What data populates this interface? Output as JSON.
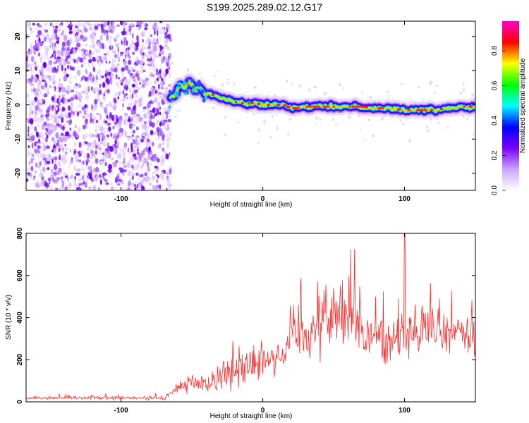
{
  "figure": {
    "title": "S199.2025.289.02.12.G17"
  },
  "chart_data": [
    {
      "type": "heatmap",
      "name": "spectrogram",
      "xlabel": "Height of straight line (km)",
      "ylabel": "Frequency (Hz)",
      "xlim": [
        -167,
        150
      ],
      "ylim": [
        -25,
        24.5
      ],
      "xticks": [
        -100,
        0,
        100
      ],
      "yticks": [
        -20,
        -10,
        0,
        10,
        20
      ],
      "noise_region_x": [
        -167,
        -65
      ],
      "ridge": {
        "x": [
          -65,
          -62,
          -58,
          -55,
          -52,
          -50,
          -48,
          -45,
          -42,
          -40,
          -35,
          -30,
          -25,
          -20,
          -15,
          -10,
          -5,
          0,
          5,
          10,
          15,
          20,
          25,
          30,
          40,
          50,
          60,
          70,
          80,
          90,
          100,
          110,
          120,
          130,
          140,
          150
        ],
        "frequency_hz": [
          2,
          3,
          6,
          5,
          7,
          6,
          4,
          5,
          4,
          3,
          3,
          2,
          1.5,
          1,
          0.5,
          0.5,
          0.5,
          0,
          0,
          0,
          0,
          -1,
          -1,
          -0.5,
          -0.5,
          -0.5,
          -0.5,
          -0.5,
          -1,
          -1,
          -1.5,
          -1.5,
          -1.5,
          -1,
          -0.5,
          -0.5
        ]
      },
      "colorbar": {
        "label": "Normalized spectral amplitude",
        "range": [
          0,
          0.97
        ],
        "ticks": [
          0.0,
          0.2,
          0.4,
          0.6,
          0.8
        ],
        "tick_labels": [
          "0.0",
          "0.2",
          "0.4",
          "0.6",
          "0.8"
        ],
        "colors": [
          "#ffffff",
          "#c9a4ff",
          "#7a00ff",
          "#0000ff",
          "#00ffff",
          "#00ff00",
          "#ffff00",
          "#ff0000",
          "#ff00c8"
        ]
      }
    },
    {
      "type": "line",
      "name": "snr",
      "xlabel": "Height of straight line (km)",
      "ylabel": "SNR (10 * v/v)",
      "xlim": [
        -167,
        150
      ],
      "ylim": [
        0,
        800
      ],
      "xticks": [
        -100,
        0,
        100
      ],
      "yticks": [
        0,
        200,
        400,
        600,
        800
      ],
      "color": "#ff2a2a",
      "envelope": {
        "x": [
          -167,
          -120,
          -70,
          -65,
          -60,
          -50,
          -40,
          -30,
          -25,
          -20,
          -10,
          0,
          10,
          15,
          20,
          30,
          40,
          45,
          50,
          55,
          60,
          65,
          70,
          80,
          90,
          100,
          110,
          120,
          130,
          140,
          150
        ],
        "mean": [
          18,
          18,
          18,
          40,
          70,
          90,
          80,
          130,
          140,
          140,
          180,
          210,
          230,
          220,
          330,
          330,
          360,
          420,
          400,
          440,
          450,
          420,
          320,
          300,
          290,
          330,
          330,
          340,
          330,
          330,
          320
        ],
        "spread": [
          8,
          10,
          12,
          20,
          40,
          60,
          60,
          90,
          110,
          100,
          120,
          130,
          140,
          130,
          160,
          180,
          200,
          220,
          220,
          230,
          220,
          200,
          170,
          160,
          160,
          170,
          160,
          150,
          140,
          150,
          160
        ]
      },
      "peak": {
        "x": 100,
        "y": 800
      }
    }
  ]
}
